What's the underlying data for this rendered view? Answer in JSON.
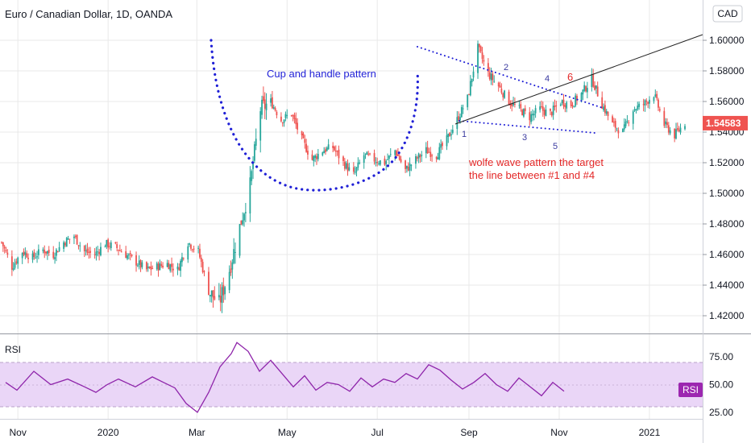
{
  "header": {
    "title": "Euro / Canadian Dollar, 1D, OANDA",
    "currency_button": "CAD"
  },
  "colors": {
    "up": "#26a69a",
    "down": "#ef5350",
    "price_badge": "#ef5350",
    "rsi_line": "#8e24aa",
    "rsi_band": "#ead6f7",
    "rsi_badge": "#9c27b0",
    "cup": "#1f1fd6",
    "wolfe_label": "#e32727",
    "wave_numbers": "#3b3ba0",
    "grid": "#e9e9e9"
  },
  "chart_data": [
    {
      "type": "candlestick",
      "title": "Euro / Canadian Dollar, 1D, OANDA",
      "ylim": [
        1.41,
        1.615
      ],
      "y_ticks": [
        "1.60000",
        "1.58000",
        "1.56000",
        "1.54000",
        "1.52000",
        "1.50000",
        "1.48000",
        "1.46000",
        "1.44000",
        "1.42000"
      ],
      "x_ticks": [
        "Nov",
        "2020",
        "Mar",
        "May",
        "Jul",
        "Sep",
        "Nov",
        "2021"
      ],
      "last_price": "1.54583",
      "close_path": [
        [
          "Oct 21 2019",
          1.468
        ],
        [
          "Oct 28 2019",
          1.452
        ],
        [
          "Nov 4 2019",
          1.462
        ],
        [
          "Nov 11 2019",
          1.458
        ],
        [
          "Nov 18 2019",
          1.463
        ],
        [
          "Nov 25 2019",
          1.46
        ],
        [
          "Dec 2 2019",
          1.468
        ],
        [
          "Dec 9 2019",
          1.472
        ],
        [
          "Dec 16 2019",
          1.462
        ],
        [
          "Dec 23 2019",
          1.46
        ],
        [
          "Dec 30 2019",
          1.467
        ],
        [
          "Jan 6 2020",
          1.465
        ],
        [
          "Jan 13 2020",
          1.46
        ],
        [
          "Jan 20 2020",
          1.455
        ],
        [
          "Jan 27 2020",
          1.45
        ],
        [
          "Feb 3 2020",
          1.452
        ],
        [
          "Feb 10 2020",
          1.454
        ],
        [
          "Feb 17 2020",
          1.45
        ],
        [
          "Feb 24 2020",
          1.468
        ],
        [
          "Mar 2 2020",
          1.462
        ],
        [
          "Mar 9 2020",
          1.436
        ],
        [
          "Mar 16 2020",
          1.428
        ],
        [
          "Mar 23 2020",
          1.45
        ],
        [
          "Mar 30 2020",
          1.478
        ],
        [
          "Apr 6 2020",
          1.505
        ],
        [
          "Apr 13 2020",
          1.555
        ],
        [
          "Apr 20 2020",
          1.56
        ],
        [
          "Apr 27 2020",
          1.548
        ],
        [
          "May 4 2020",
          1.552
        ],
        [
          "May 11 2020",
          1.535
        ],
        [
          "May 18 2020",
          1.522
        ],
        [
          "May 25 2020",
          1.528
        ],
        [
          "Jun 1 2020",
          1.53
        ],
        [
          "Jun 8 2020",
          1.52
        ],
        [
          "Jun 15 2020",
          1.512
        ],
        [
          "Jun 22 2020",
          1.525
        ],
        [
          "Jun 29 2020",
          1.522
        ],
        [
          "Jul 6 2020",
          1.52
        ],
        [
          "Jul 13 2020",
          1.528
        ],
        [
          "Jul 20 2020",
          1.515
        ],
        [
          "Jul 27 2020",
          1.522
        ],
        [
          "Aug 3 2020",
          1.528
        ],
        [
          "Aug 10 2020",
          1.525
        ],
        [
          "Aug 17 2020",
          1.535
        ],
        [
          "Aug 24 2020",
          1.548
        ],
        [
          "Aug 31 2020",
          1.562
        ],
        [
          "Sep 7 2020",
          1.595
        ],
        [
          "Sep 14 2020",
          1.578
        ],
        [
          "Sep 21 2020",
          1.57
        ],
        [
          "Sep 28 2020",
          1.56
        ],
        [
          "Oct 5 2020",
          1.555
        ],
        [
          "Oct 12 2020",
          1.55
        ],
        [
          "Oct 19 2020",
          1.555
        ],
        [
          "Oct 26 2020",
          1.552
        ],
        [
          "Nov 2 2020",
          1.56
        ],
        [
          "Nov 9 2020",
          1.558
        ],
        [
          "Nov 16 2020",
          1.565
        ],
        [
          "Nov 23 2020",
          1.575
        ],
        [
          "Nov 30 2020",
          1.558
        ],
        [
          "Dec 7 2020",
          1.545
        ],
        [
          "Dec 14 2020",
          1.54
        ],
        [
          "Dec 21 2020",
          1.555
        ],
        [
          "Dec 28 2020",
          1.558
        ],
        [
          "Jan 4 2021",
          1.565
        ],
        [
          "Jan 11 2021",
          1.545
        ],
        [
          "Jan 18 2021",
          1.538
        ],
        [
          "Jan 25 2021",
          1.546
        ]
      ],
      "annotations": {
        "cup_label": "Cup and handle pattern",
        "wolfe_text": [
          "wolfe wave pattern the target",
          "the line between #1 and #4"
        ],
        "wave_points": [
          "1",
          "2",
          "3",
          "4",
          "5",
          "6"
        ]
      }
    },
    {
      "type": "line",
      "title": "RSI",
      "ylim": [
        20,
        95
      ],
      "band": [
        30,
        70
      ],
      "y_ticks": [
        "75.00",
        "50.00",
        "25.00"
      ],
      "badge": "RSI",
      "path": [
        [
          1,
          52
        ],
        [
          3,
          45
        ],
        [
          6,
          62
        ],
        [
          9,
          50
        ],
        [
          12,
          55
        ],
        [
          15,
          48
        ],
        [
          17,
          43
        ],
        [
          19,
          50
        ],
        [
          21,
          55
        ],
        [
          24,
          48
        ],
        [
          27,
          57
        ],
        [
          29,
          52
        ],
        [
          31,
          47
        ],
        [
          33,
          33
        ],
        [
          35,
          25
        ],
        [
          37,
          43
        ],
        [
          39,
          66
        ],
        [
          41,
          78
        ],
        [
          42,
          88
        ],
        [
          44,
          80
        ],
        [
          46,
          62
        ],
        [
          48,
          72
        ],
        [
          50,
          60
        ],
        [
          52,
          48
        ],
        [
          54,
          58
        ],
        [
          56,
          45
        ],
        [
          58,
          52
        ],
        [
          60,
          50
        ],
        [
          62,
          44
        ],
        [
          64,
          56
        ],
        [
          66,
          48
        ],
        [
          68,
          55
        ],
        [
          70,
          52
        ],
        [
          72,
          60
        ],
        [
          74,
          55
        ],
        [
          76,
          68
        ],
        [
          78,
          63
        ],
        [
          80,
          54
        ],
        [
          82,
          46
        ],
        [
          84,
          52
        ],
        [
          86,
          60
        ],
        [
          88,
          50
        ],
        [
          90,
          44
        ],
        [
          92,
          56
        ],
        [
          94,
          48
        ],
        [
          96,
          40
        ],
        [
          98,
          52
        ],
        [
          100,
          44
        ]
      ]
    }
  ]
}
